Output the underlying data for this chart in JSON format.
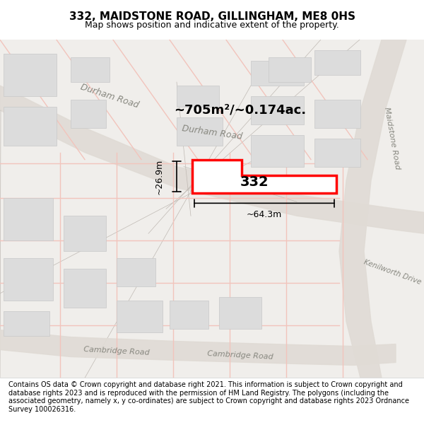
{
  "title": "332, MAIDSTONE ROAD, GILLINGHAM, ME8 0HS",
  "subtitle": "Map shows position and indicative extent of the property.",
  "footer": "Contains OS data © Crown copyright and database right 2021. This information is subject to Crown copyright and database rights 2023 and is reproduced with the permission of HM Land Registry. The polygons (including the associated geometry, namely x, y co-ordinates) are subject to Crown copyright and database rights 2023 Ordnance Survey 100026316.",
  "bg_color": "#f5f5f5",
  "map_bg": "#f0eeeb",
  "road_color": "#d4cfc9",
  "road_line_color": "#c0b8b0",
  "plot_outline_color": "#e8e8e8",
  "building_color": "#dcdcdc",
  "building_edge_color": "#c8c8c8",
  "highlight_color": "#ff0000",
  "road_fill": "#e8e4df",
  "pink_road": "#f5c0b8"
}
